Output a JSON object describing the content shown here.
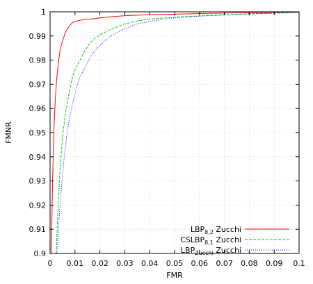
{
  "chart_data": {
    "type": "line",
    "xlabel": "FMR",
    "ylabel": "FMNR",
    "xlim": [
      0,
      0.1
    ],
    "ylim": [
      0.9,
      1.0
    ],
    "grid": true,
    "legend_position": "bottom-right",
    "x_ticks": [
      "0",
      "0.01",
      "0.02",
      "0.03",
      "0.04",
      "0.05",
      "0.06",
      "0.07",
      "0.08",
      "0.09",
      "0.1"
    ],
    "y_ticks": [
      "0.9",
      "0.91",
      "0.92",
      "0.93",
      "0.94",
      "0.95",
      "0.96",
      "0.97",
      "0.98",
      "0.99",
      "1"
    ],
    "series": [
      {
        "name_main": "LBP",
        "name_sub": "8,2",
        "name_suffix": " Zucchi",
        "color": "#ff0000",
        "dash": "",
        "x": [
          0.0005,
          0.001,
          0.0015,
          0.002,
          0.0025,
          0.003,
          0.004,
          0.005,
          0.006,
          0.007,
          0.008,
          0.009,
          0.01,
          0.012,
          0.014,
          0.016,
          0.018,
          0.02,
          0.025,
          0.03,
          0.04,
          0.05,
          0.06,
          0.07,
          0.08,
          0.09,
          0.1
        ],
        "y": [
          0.9,
          0.93,
          0.95,
          0.962,
          0.97,
          0.976,
          0.984,
          0.988,
          0.991,
          0.993,
          0.9945,
          0.9955,
          0.996,
          0.9965,
          0.9968,
          0.997,
          0.9972,
          0.9975,
          0.998,
          0.9984,
          0.9988,
          0.999,
          0.9993,
          0.9995,
          0.9997,
          0.9998,
          0.9999
        ]
      },
      {
        "name_main": "CSLBP",
        "name_sub": "8,1",
        "name_suffix": " Zucchi",
        "color": "#00cc00",
        "dash": "4 2",
        "x": [
          0.0025,
          0.003,
          0.0035,
          0.004,
          0.005,
          0.006,
          0.007,
          0.008,
          0.009,
          0.01,
          0.011,
          0.012,
          0.014,
          0.016,
          0.018,
          0.02,
          0.025,
          0.03,
          0.035,
          0.04,
          0.05,
          0.06,
          0.07,
          0.08,
          0.09,
          0.1
        ],
        "y": [
          0.9,
          0.915,
          0.925,
          0.935,
          0.948,
          0.957,
          0.963,
          0.968,
          0.973,
          0.976,
          0.978,
          0.98,
          0.984,
          0.987,
          0.989,
          0.9905,
          0.993,
          0.995,
          0.9962,
          0.997,
          0.9978,
          0.9983,
          0.9988,
          0.9992,
          0.9995,
          0.9998
        ]
      },
      {
        "name_main": "LBP",
        "name_sub": "Zucchi",
        "name_suffix": " Zucchi",
        "color": "#0000ff",
        "dash": "1 2",
        "x": [
          0.0028,
          0.0035,
          0.004,
          0.005,
          0.006,
          0.007,
          0.008,
          0.009,
          0.01,
          0.011,
          0.012,
          0.014,
          0.016,
          0.018,
          0.02,
          0.022,
          0.025,
          0.03,
          0.035,
          0.04,
          0.045,
          0.05,
          0.06,
          0.07,
          0.08,
          0.09,
          0.1
        ],
        "y": [
          0.9,
          0.912,
          0.92,
          0.933,
          0.943,
          0.951,
          0.957,
          0.962,
          0.966,
          0.97,
          0.973,
          0.977,
          0.981,
          0.984,
          0.986,
          0.988,
          0.9905,
          0.993,
          0.995,
          0.996,
          0.9968,
          0.9975,
          0.9982,
          0.9987,
          0.9991,
          0.9994,
          0.9997
        ]
      }
    ]
  }
}
